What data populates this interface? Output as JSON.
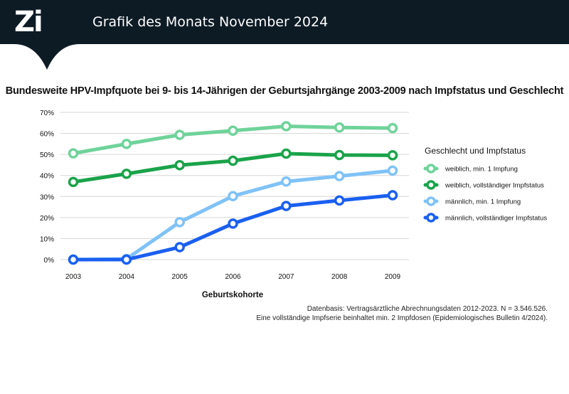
{
  "header": {
    "logo": "Zi",
    "title": "Grafik des Monats November 2024"
  },
  "colors": {
    "header_bg": "#0d1b25",
    "series": [
      "#6fd39a",
      "#1aa34a",
      "#7fc2f7",
      "#1a5ff0"
    ]
  },
  "chart_data": {
    "type": "line",
    "title": "Bundesweite HPV-Impfquote bei 9- bis 14-Jährigen der Geburtsjahrgänge 2003-2009 nach Impfstatus und Geschlecht",
    "xlabel": "Geburtskohorte",
    "ylabel": "",
    "categories": [
      "2003",
      "2004",
      "2005",
      "2006",
      "2007",
      "2008",
      "2009"
    ],
    "yticks": [
      "0%",
      "10%",
      "20%",
      "30%",
      "40%",
      "50%",
      "60%",
      "70%"
    ],
    "ylim": [
      0,
      70
    ],
    "grid": true,
    "legend_title": "Geschlecht und Impfstatus",
    "legend_position": "right",
    "series": [
      {
        "name": "weiblich, min. 1 Impfung",
        "color": "#6fd39a",
        "values": [
          50.5,
          55,
          59.3,
          61.3,
          63.4,
          62.8,
          62.5
        ]
      },
      {
        "name": "weiblich, vollständiger Impfstatus",
        "color": "#1aa34a",
        "values": [
          36.9,
          40.8,
          44.9,
          47.0,
          50.4,
          49.7,
          49.6
        ]
      },
      {
        "name": "männlich, min. 1 Impfung",
        "color": "#7fc2f7",
        "values": [
          0,
          0.3,
          17.8,
          30.2,
          37.1,
          39.7,
          42.3
        ]
      },
      {
        "name": "männlich, vollständiger Impfstatus",
        "color": "#1a5ff0",
        "values": [
          0,
          0,
          5.9,
          17.1,
          25.5,
          28.1,
          30.6
        ]
      }
    ]
  },
  "footnote": {
    "line1": "Datenbasis: Vertragsärztliche Abrechnungsdaten 2012-2023. N = 3.546.526.",
    "line2": "Eine vollständige Impfserie beinhaltet min. 2 Impfdosen (Epidemiologisches Bulletin 4/2024)."
  }
}
